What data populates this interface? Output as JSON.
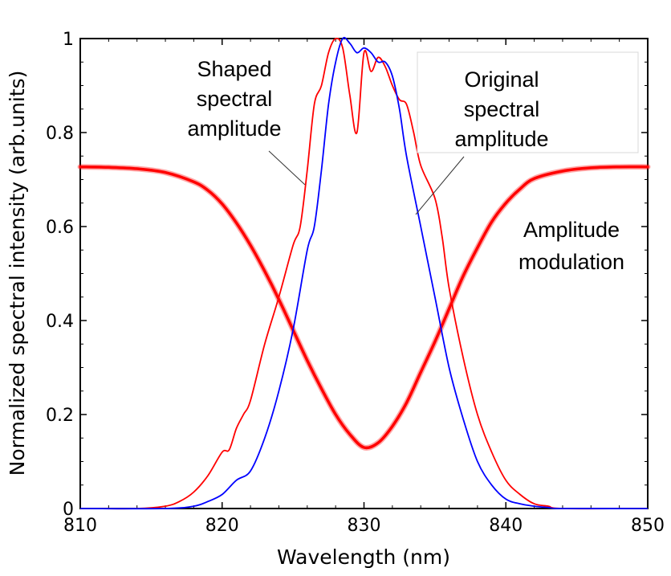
{
  "chart_data": {
    "type": "line",
    "xlabel": "Wavelength (nm)",
    "ylabel": "Normalized spectral intensity (arb.units)",
    "xlim": [
      810,
      850
    ],
    "ylim": [
      0,
      1
    ],
    "xticks": [
      810,
      820,
      830,
      840,
      850
    ],
    "yticks": [
      0,
      0.2,
      0.4,
      0.6,
      0.8,
      1
    ],
    "x_tick_labels": [
      "810",
      "820",
      "830",
      "840",
      "850"
    ],
    "y_tick_labels": [
      "0",
      "0.2",
      "0.4",
      "0.6",
      "0.8",
      "1"
    ],
    "grid": false,
    "legend": "none",
    "series": [
      {
        "color": "#ff0000",
        "style": "thick",
        "x": [
          810,
          812,
          814,
          816,
          818,
          819,
          820,
          821,
          822,
          823,
          824,
          825,
          826,
          827,
          828,
          829,
          830,
          831,
          832,
          833,
          834,
          835,
          836,
          837,
          838,
          839,
          840,
          841,
          842,
          844,
          846,
          848,
          850
        ],
        "values": [
          0.727,
          0.726,
          0.723,
          0.715,
          0.695,
          0.677,
          0.648,
          0.608,
          0.56,
          0.505,
          0.445,
          0.38,
          0.315,
          0.255,
          0.2,
          0.158,
          0.13,
          0.14,
          0.175,
          0.225,
          0.29,
          0.355,
          0.425,
          0.495,
          0.555,
          0.61,
          0.65,
          0.68,
          0.702,
          0.718,
          0.725,
          0.727,
          0.727
        ]
      },
      {
        "color": "#ff0000",
        "style": "thin",
        "x": [
          814,
          816,
          817,
          818,
          819,
          820,
          820.5,
          821,
          821.5,
          822,
          823,
          824,
          825,
          825.5,
          826,
          826.5,
          827,
          827.5,
          828,
          828.5,
          829,
          829.5,
          830,
          830.5,
          831,
          831.5,
          832,
          832.5,
          833,
          833.5,
          834,
          835,
          835.5,
          836,
          837,
          838,
          839,
          840,
          841,
          842,
          843,
          844
        ],
        "values": [
          0.0,
          0.005,
          0.015,
          0.035,
          0.07,
          0.12,
          0.125,
          0.17,
          0.2,
          0.23,
          0.35,
          0.45,
          0.56,
          0.6,
          0.72,
          0.86,
          0.9,
          0.97,
          1.0,
          0.98,
          0.88,
          0.8,
          0.97,
          0.93,
          0.96,
          0.94,
          0.9,
          0.87,
          0.86,
          0.8,
          0.73,
          0.66,
          0.58,
          0.47,
          0.32,
          0.2,
          0.12,
          0.06,
          0.03,
          0.01,
          0.005,
          0.0
        ]
      },
      {
        "color": "#0000ff",
        "style": "thin",
        "x": [
          816,
          818,
          819,
          820,
          821,
          822,
          823,
          824,
          825,
          826,
          826.5,
          827,
          827.5,
          828,
          828.5,
          829,
          829.5,
          830,
          830.5,
          831,
          831.5,
          832,
          832.5,
          833,
          834,
          835,
          836,
          837,
          838,
          839,
          840,
          841,
          842,
          843,
          844
        ],
        "values": [
          0.0,
          0.005,
          0.015,
          0.03,
          0.06,
          0.08,
          0.15,
          0.25,
          0.38,
          0.55,
          0.6,
          0.72,
          0.86,
          0.95,
          1.0,
          0.99,
          0.97,
          0.98,
          0.97,
          0.95,
          0.95,
          0.92,
          0.85,
          0.75,
          0.6,
          0.45,
          0.3,
          0.19,
          0.1,
          0.05,
          0.02,
          0.01,
          0.005,
          0.002,
          0.0
        ]
      }
    ],
    "annotations": [
      {
        "lines": [
          "Shaped",
          "spectral",
          "amplitude"
        ]
      },
      {
        "lines": [
          "Original",
          "spectral",
          "amplitude"
        ]
      },
      {
        "lines": [
          "Amplitude",
          "modulation"
        ]
      }
    ]
  }
}
